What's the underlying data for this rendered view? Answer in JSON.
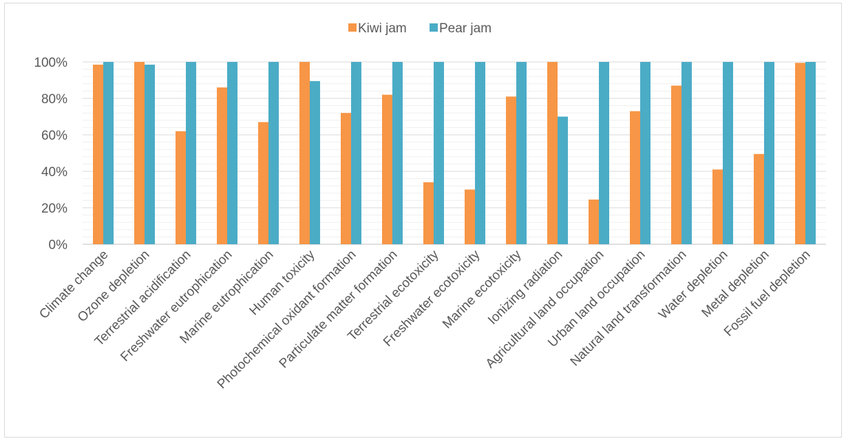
{
  "chart_data": {
    "type": "bar",
    "categories": [
      "Climate change",
      "Ozone depletion",
      "Terrestrial acidification",
      "Freshwater eutrophication",
      "Marine eutrophication",
      "Human toxicity",
      "Photochemical oxidant formation",
      "Particulate matter formation",
      "Terrestrial ecotoxicity",
      "Freshwater ecotoxicity",
      "Marine ecotoxicity",
      "Ionizing radiation",
      "Agricultural land occupation",
      "Urban land occupation",
      "Natural land transformation",
      "Water depletion",
      "Metal depletion",
      "Fossil fuel depletion"
    ],
    "series": [
      {
        "name": "Kiwi jam",
        "color": "#F79646",
        "values": [
          98.5,
          100,
          62,
          86,
          67,
          100,
          72,
          82,
          34,
          30,
          81,
          100,
          24.5,
          73,
          87,
          41,
          49.5,
          99.5
        ]
      },
      {
        "name": "Pear jam",
        "color": "#4BACC6",
        "values": [
          100,
          98.5,
          100,
          100,
          100,
          89.5,
          100,
          100,
          100,
          100,
          100,
          70,
          100,
          100,
          100,
          100,
          100,
          100
        ]
      }
    ],
    "y_ticks": [
      "0%",
      "20%",
      "40%",
      "60%",
      "80%",
      "100%"
    ],
    "ylim": [
      0,
      100
    ],
    "y_major_step": 20,
    "y_minor_step": 4,
    "grid": true,
    "legend_position": "top-center",
    "title": "",
    "xlabel": "",
    "ylabel": ""
  }
}
